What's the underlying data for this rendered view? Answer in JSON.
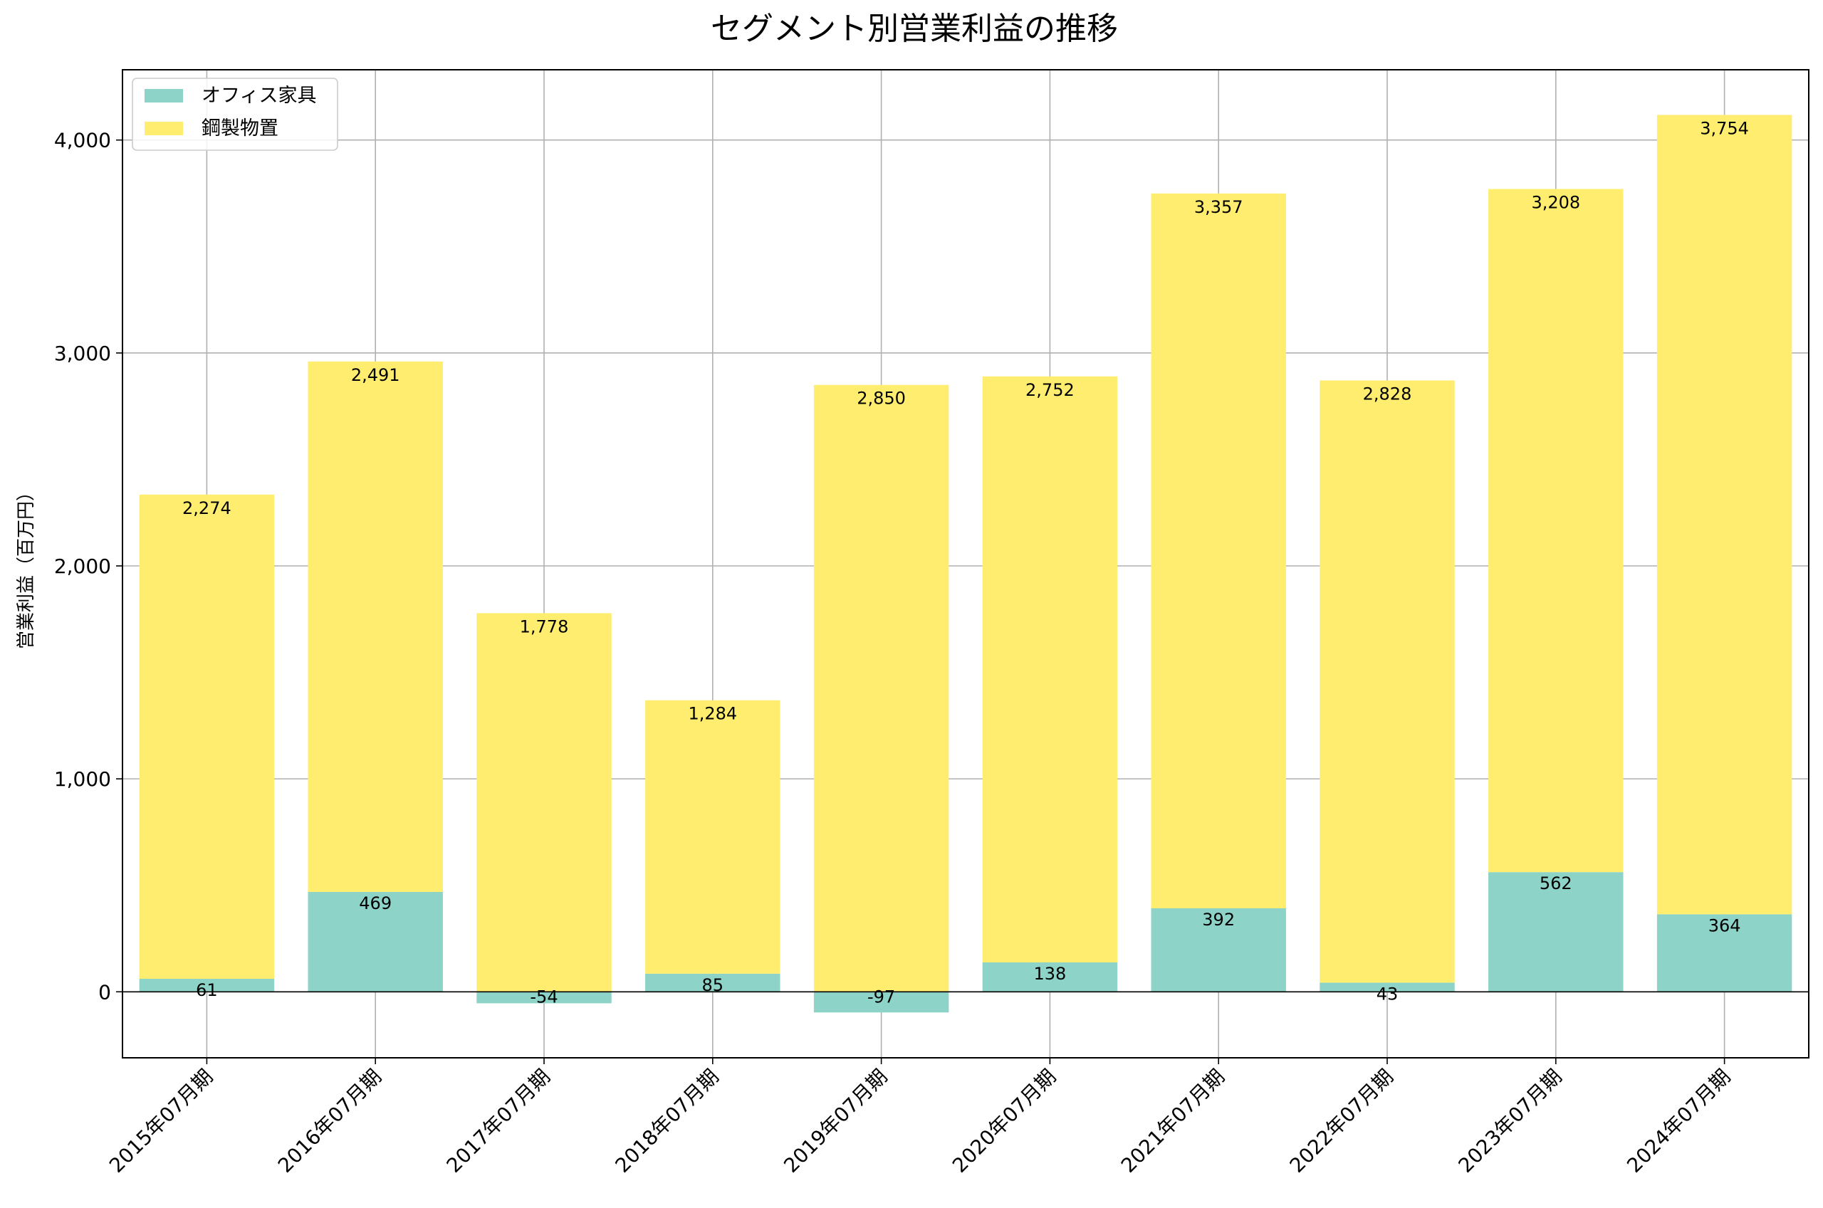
{
  "chart_data": {
    "type": "bar",
    "stacked": true,
    "title": "セグメント別営業利益の推移",
    "ylabel": "営業利益（百万円）",
    "xlabel": "",
    "categories": [
      "2015年07月期",
      "2016年07月期",
      "2017年07月期",
      "2018年07月期",
      "2019年07月期",
      "2020年07月期",
      "2021年07月期",
      "2022年07月期",
      "2023年07月期",
      "2024年07月期"
    ],
    "series": [
      {
        "name": "オフィス家具",
        "color": "#8dd3c7",
        "values": [
          61,
          469,
          -54,
          85,
          -97,
          138,
          392,
          43,
          562,
          364
        ],
        "labels": [
          "61",
          "469",
          "-54",
          "85",
          "-97",
          "138",
          "392",
          "43",
          "562",
          "364"
        ]
      },
      {
        "name": "鋼製物置",
        "color": "#ffed6f",
        "values": [
          2274,
          2491,
          1778,
          1284,
          2850,
          2752,
          3357,
          2828,
          3208,
          3754
        ],
        "labels": [
          "2,274",
          "2,491",
          "1,778",
          "1,284",
          "2,850",
          "2,752",
          "3,357",
          "2,828",
          "3,208",
          "3,754"
        ]
      }
    ],
    "yticks": [
      0,
      1000,
      2000,
      3000,
      4000
    ],
    "ytick_labels": [
      "0",
      "1,000",
      "2,000",
      "3,000",
      "4,000"
    ],
    "ylim": [
      -310,
      4330
    ],
    "grid": true,
    "legend": "top-left"
  }
}
